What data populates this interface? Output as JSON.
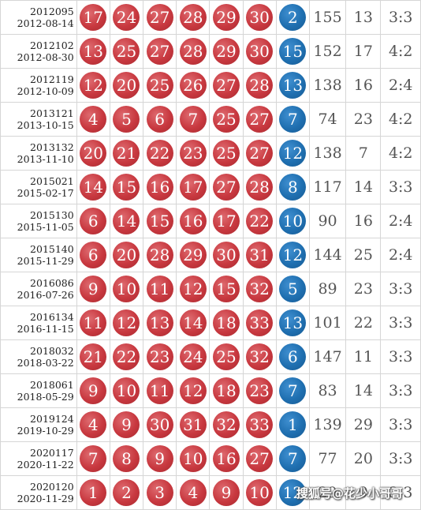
{
  "rows": [
    {
      "issue": "2012095",
      "date": "2012-08-14",
      "reds": [
        "17",
        "24",
        "27",
        "28",
        "29",
        "30"
      ],
      "blue": "2",
      "sum": "155",
      "span": "13",
      "ratio": "3:3"
    },
    {
      "issue": "2012102",
      "date": "2012-08-30",
      "reds": [
        "13",
        "25",
        "27",
        "28",
        "29",
        "30"
      ],
      "blue": "15",
      "sum": "152",
      "span": "17",
      "ratio": "4:2"
    },
    {
      "issue": "2012119",
      "date": "2012-10-09",
      "reds": [
        "12",
        "20",
        "25",
        "26",
        "27",
        "28"
      ],
      "blue": "13",
      "sum": "138",
      "span": "16",
      "ratio": "2:4"
    },
    {
      "issue": "2013121",
      "date": "2013-10-15",
      "reds": [
        "4",
        "5",
        "6",
        "7",
        "25",
        "27"
      ],
      "blue": "7",
      "sum": "74",
      "span": "23",
      "ratio": "4:2"
    },
    {
      "issue": "2013132",
      "date": "2013-11-10",
      "reds": [
        "20",
        "21",
        "22",
        "23",
        "25",
        "27"
      ],
      "blue": "12",
      "sum": "138",
      "span": "7",
      "ratio": "4:2"
    },
    {
      "issue": "2015021",
      "date": "2015-02-17",
      "reds": [
        "14",
        "15",
        "16",
        "17",
        "27",
        "28"
      ],
      "blue": "8",
      "sum": "117",
      "span": "14",
      "ratio": "3:3"
    },
    {
      "issue": "2015130",
      "date": "2015-11-05",
      "reds": [
        "6",
        "14",
        "15",
        "16",
        "17",
        "22"
      ],
      "blue": "10",
      "sum": "90",
      "span": "16",
      "ratio": "2:4"
    },
    {
      "issue": "2015140",
      "date": "2015-11-29",
      "reds": [
        "6",
        "20",
        "28",
        "29",
        "30",
        "31"
      ],
      "blue": "12",
      "sum": "144",
      "span": "25",
      "ratio": "2:4"
    },
    {
      "issue": "2016086",
      "date": "2016-07-26",
      "reds": [
        "9",
        "10",
        "11",
        "12",
        "15",
        "32"
      ],
      "blue": "5",
      "sum": "89",
      "span": "23",
      "ratio": "3:3"
    },
    {
      "issue": "2016134",
      "date": "2016-11-15",
      "reds": [
        "11",
        "12",
        "13",
        "14",
        "18",
        "33"
      ],
      "blue": "13",
      "sum": "101",
      "span": "22",
      "ratio": "3:3"
    },
    {
      "issue": "2018032",
      "date": "2018-03-22",
      "reds": [
        "21",
        "22",
        "23",
        "24",
        "25",
        "32"
      ],
      "blue": "6",
      "sum": "147",
      "span": "11",
      "ratio": "3:3"
    },
    {
      "issue": "2018061",
      "date": "2018-05-29",
      "reds": [
        "9",
        "10",
        "11",
        "12",
        "18",
        "23"
      ],
      "blue": "7",
      "sum": "83",
      "span": "14",
      "ratio": "3:3"
    },
    {
      "issue": "2019124",
      "date": "2019-10-29",
      "reds": [
        "4",
        "9",
        "30",
        "31",
        "32",
        "33"
      ],
      "blue": "1",
      "sum": "139",
      "span": "29",
      "ratio": "3:3"
    },
    {
      "issue": "2020117",
      "date": "2020-11-22",
      "reds": [
        "7",
        "8",
        "9",
        "10",
        "16",
        "27"
      ],
      "blue": "7",
      "sum": "77",
      "span": "20",
      "ratio": "3:3"
    },
    {
      "issue": "2020120",
      "date": "2020-11-29",
      "reds": [
        "1",
        "2",
        "3",
        "4",
        "9",
        "10"
      ],
      "blue": "12",
      "sum": "29",
      "span": "9",
      "ratio": "3:3"
    }
  ],
  "watermark": "搜狐号@花少小哥哥",
  "colors": {
    "red_ball": "#c8383f",
    "blue_ball": "#1f6fb0",
    "grid": "#d6d6d6",
    "stat_text": "#555555"
  }
}
